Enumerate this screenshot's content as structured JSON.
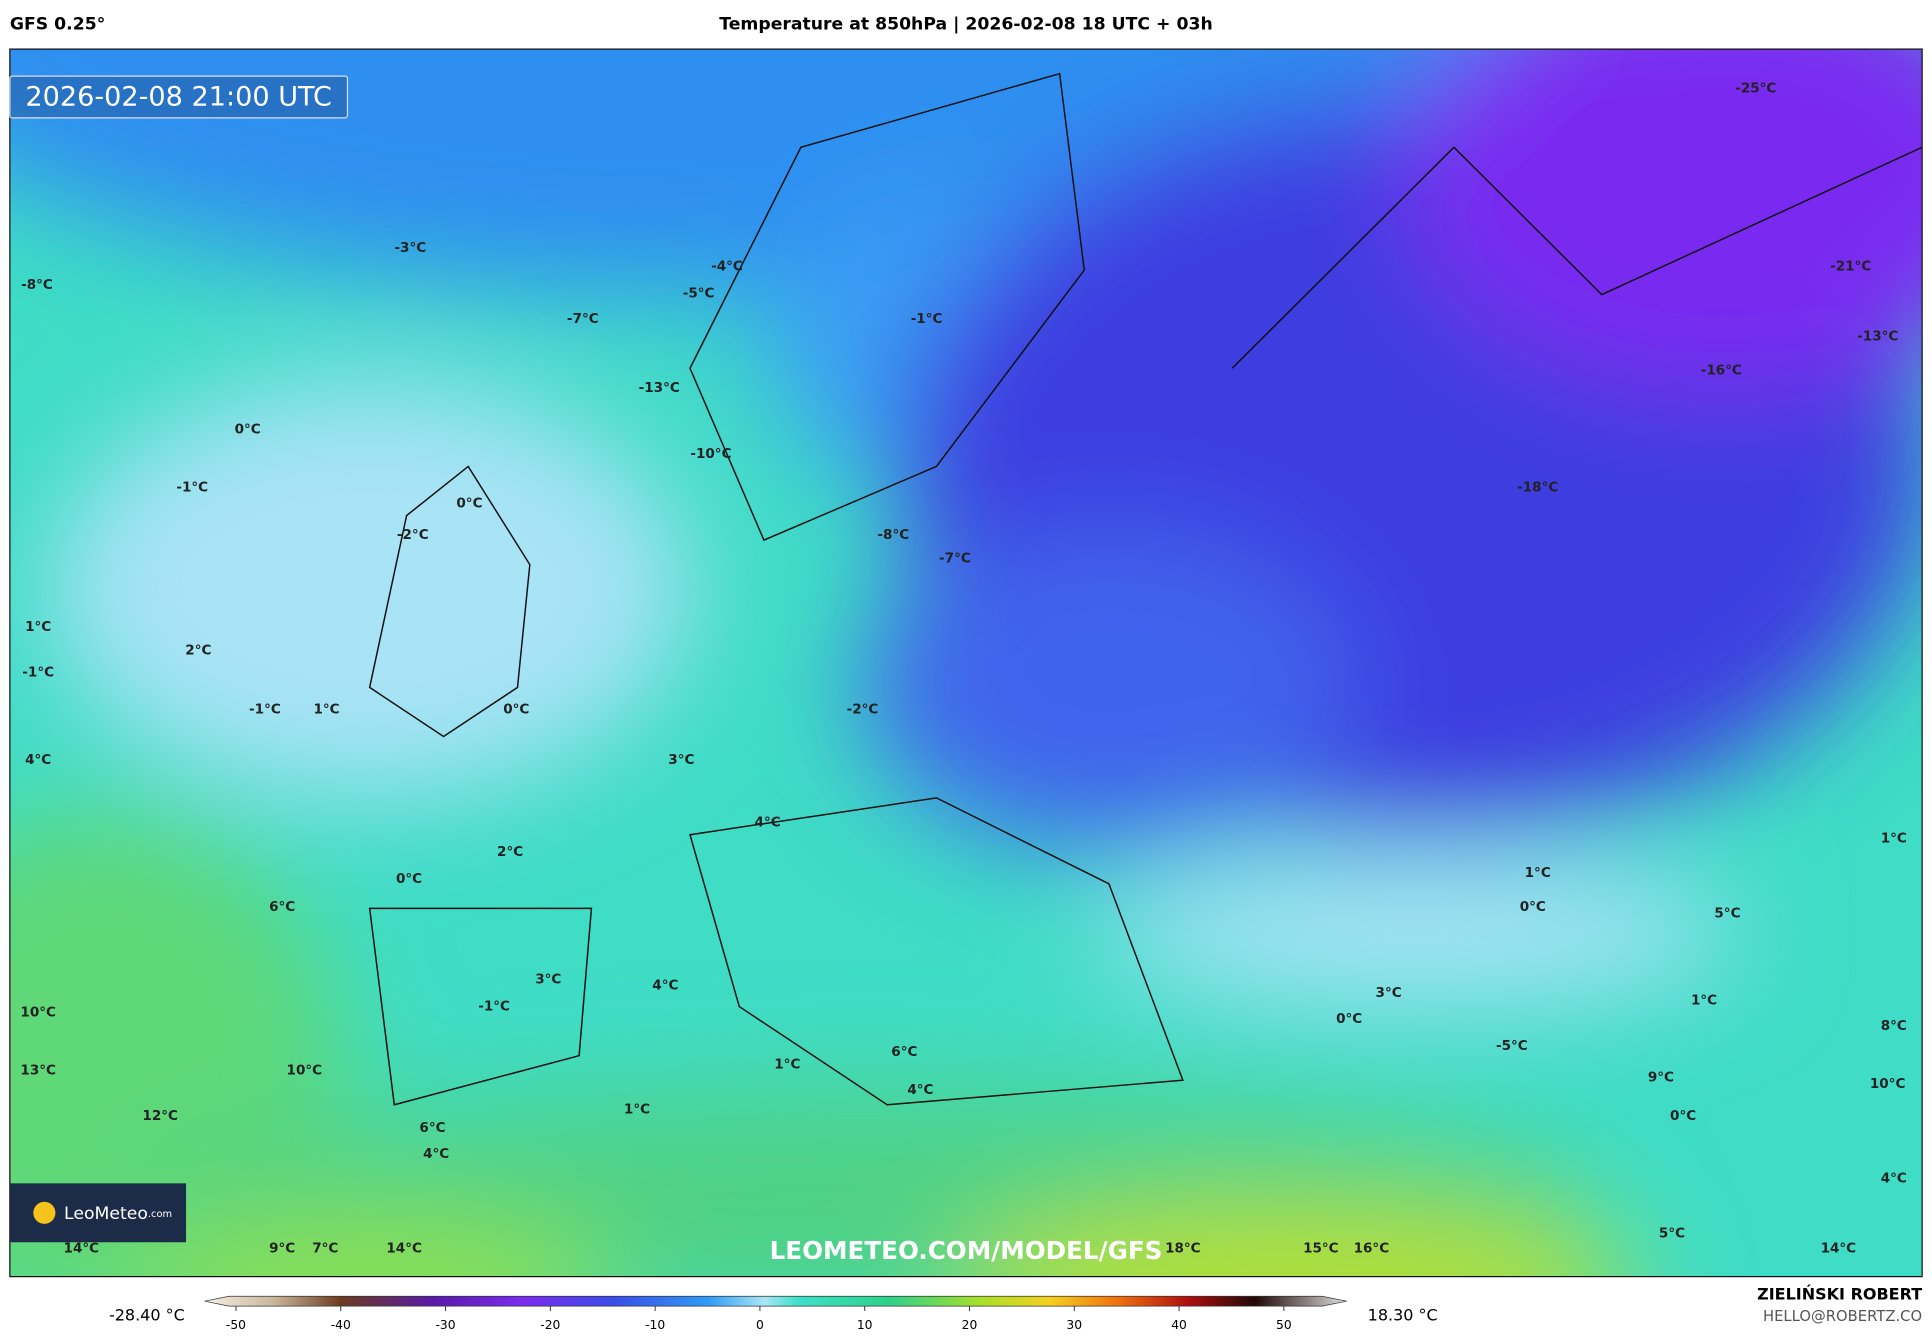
{
  "header": {
    "model": "GFS 0.25°",
    "title": "Temperature at 850hPa | 2026-02-08 18 UTC + 03h"
  },
  "map": {
    "timestamp": "2026-02-08 21:00 UTC",
    "watermark": "LEOMETEO.COM/MODEL/GFS",
    "logo": {
      "name": "LeoMeteo",
      "suffix": ".com"
    },
    "labels": [
      "-3°C",
      "-8°C",
      "-4°C",
      "-5°C",
      "-7°C",
      "-1°C",
      "-25°C",
      "-21°C",
      "-13°C",
      "-16°C",
      "-13°C",
      "0°C",
      "-10°C",
      "-1°C",
      "0°C",
      "-18°C",
      "-2°C",
      "-8°C",
      "-7°C",
      "1°C",
      "2°C",
      "-1°C",
      "-1°C",
      "1°C",
      "0°C",
      "-2°C",
      "4°C",
      "3°C",
      "4°C",
      "1°C",
      "2°C",
      "1°C",
      "0°C",
      "0°C",
      "6°C",
      "5°C",
      "3°C",
      "4°C",
      "3°C",
      "1°C",
      "-1°C",
      "10°C",
      "0°C",
      "8°C",
      "-5°C",
      "6°C",
      "1°C",
      "13°C",
      "10°C",
      "9°C",
      "10°C",
      "4°C",
      "1°C",
      "12°C",
      "0°C",
      "6°C",
      "4°C",
      "4°C",
      "5°C",
      "14°C",
      "9°C",
      "7°C",
      "14°C",
      "18°C",
      "15°C",
      "16°C",
      "14°C"
    ]
  },
  "colorbar": {
    "min_label": "-28.40 °C",
    "max_label": "18.30 °C",
    "lim": [
      -53,
      56
    ],
    "ticks": [
      -50,
      -40,
      -30,
      -20,
      -10,
      0,
      10,
      20,
      30,
      40,
      50
    ]
  },
  "footer": {
    "author": "ZIELIŃSKI ROBERT",
    "email": "HELLO@ROBERTZ.CO"
  }
}
